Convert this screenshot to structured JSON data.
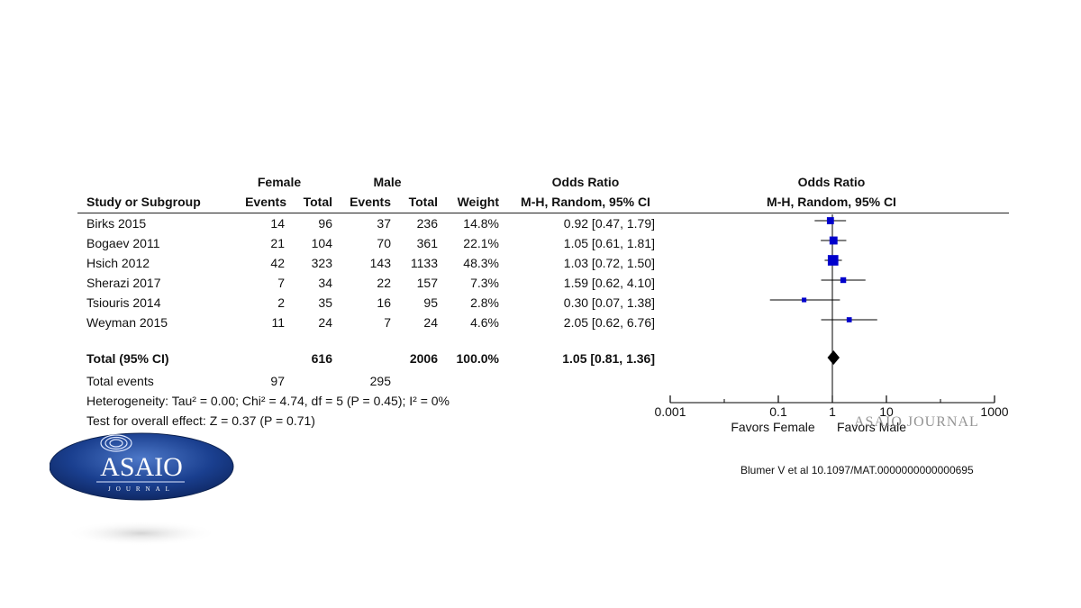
{
  "header": {
    "female_group": "Female",
    "male_group": "Male",
    "or_group": "Odds Ratio",
    "plot_group": "Odds Ratio",
    "col_study": "Study or Subgroup",
    "col_f_events": "Events",
    "col_f_total": "Total",
    "col_m_events": "Events",
    "col_m_total": "Total",
    "col_weight": "Weight",
    "col_or": "M-H, Random, 95% CI",
    "col_plot": "M-H, Random, 95% CI"
  },
  "rows": [
    {
      "study": "Birks 2015",
      "fe": "14",
      "ft": "96",
      "me": "37",
      "mt": "236",
      "w": "14.8%",
      "ci": "0.92 [0.47, 1.79]"
    },
    {
      "study": "Bogaev 2011",
      "fe": "21",
      "ft": "104",
      "me": "70",
      "mt": "361",
      "w": "22.1%",
      "ci": "1.05 [0.61, 1.81]"
    },
    {
      "study": "Hsich 2012",
      "fe": "42",
      "ft": "323",
      "me": "143",
      "mt": "1133",
      "w": "48.3%",
      "ci": "1.03 [0.72, 1.50]"
    },
    {
      "study": "Sherazi 2017",
      "fe": "7",
      "ft": "34",
      "me": "22",
      "mt": "157",
      "w": "7.3%",
      "ci": "1.59 [0.62, 4.10]"
    },
    {
      "study": "Tsiouris 2014",
      "fe": "2",
      "ft": "35",
      "me": "16",
      "mt": "95",
      "w": "2.8%",
      "ci": "0.30 [0.07, 1.38]"
    },
    {
      "study": "Weyman 2015",
      "fe": "11",
      "ft": "24",
      "me": "7",
      "mt": "24",
      "w": "4.6%",
      "ci": "2.05 [0.62, 6.76]"
    }
  ],
  "total": {
    "label": "Total (95% CI)",
    "ft": "616",
    "mt": "2006",
    "w": "100.0%",
    "ci": "1.05 [0.81, 1.36]"
  },
  "events": {
    "label": "Total events",
    "fe": "97",
    "me": "295"
  },
  "heterogeneity": "Heterogeneity: Tau² = 0.00; Chi² = 4.74, df = 5 (P = 0.45); I² = 0%",
  "overall_effect": "Test for overall effect: Z = 0.37 (P = 0.71)",
  "favors_left": "Favors Female",
  "favors_right": "Favors Male",
  "watermark": "ASAIO JOURNAL",
  "citation": "Blumer V et al 10.1097/MAT.0000000000000695",
  "logo": {
    "main": "ASAIO",
    "sub": "JOURNAL"
  },
  "colors": {
    "square": "#0000cc",
    "diamond": "#000000",
    "line": "#000000",
    "logo_blue": "#1a3f8f"
  },
  "chart_data": {
    "type": "forest",
    "x_scale": "log",
    "xlim": [
      0.001,
      1000
    ],
    "xticks": [
      0.001,
      0.1,
      1,
      10,
      1000
    ],
    "xtick_labels": [
      "0.001",
      "0.1",
      "1",
      "10",
      "1000"
    ],
    "null_line": 1,
    "studies": [
      {
        "name": "Birks 2015",
        "or": 0.92,
        "lo": 0.47,
        "hi": 1.79,
        "weight": 14.8
      },
      {
        "name": "Bogaev 2011",
        "or": 1.05,
        "lo": 0.61,
        "hi": 1.81,
        "weight": 22.1
      },
      {
        "name": "Hsich 2012",
        "or": 1.03,
        "lo": 0.72,
        "hi": 1.5,
        "weight": 48.3
      },
      {
        "name": "Sherazi 2017",
        "or": 1.59,
        "lo": 0.62,
        "hi": 4.1,
        "weight": 7.3
      },
      {
        "name": "Tsiouris 2014",
        "or": 0.3,
        "lo": 0.07,
        "hi": 1.38,
        "weight": 2.8
      },
      {
        "name": "Weyman 2015",
        "or": 2.05,
        "lo": 0.62,
        "hi": 6.76,
        "weight": 4.6
      }
    ],
    "pooled": {
      "or": 1.05,
      "lo": 0.81,
      "hi": 1.36
    }
  }
}
